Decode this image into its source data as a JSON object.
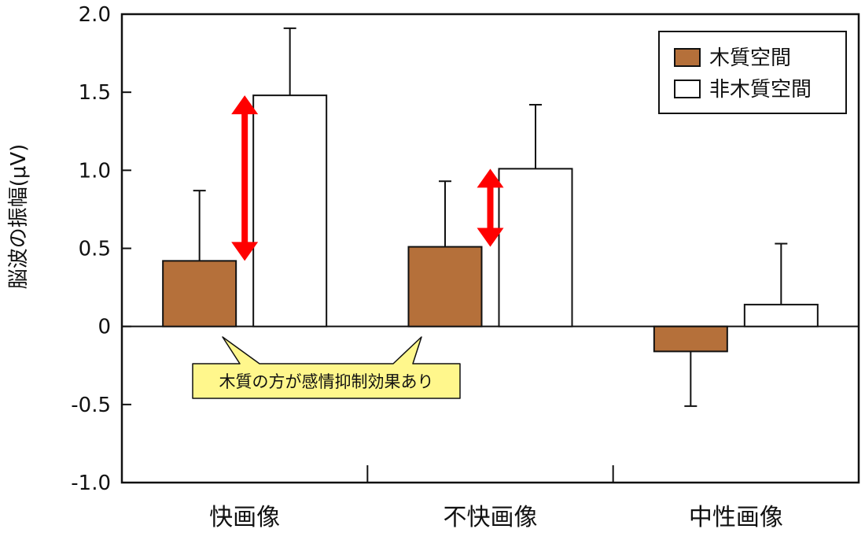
{
  "chart_data": {
    "type": "bar",
    "categories": [
      "快画像",
      "不快画像",
      "中性画像"
    ],
    "series": [
      {
        "name": "木質空間",
        "color": "#b5703a",
        "values": [
          0.42,
          0.51,
          -0.16
        ],
        "errors": [
          0.45,
          0.42,
          0.35
        ]
      },
      {
        "name": "非木質空間",
        "color": "#ffffff",
        "values": [
          1.48,
          1.01,
          0.14
        ],
        "errors": [
          0.43,
          0.41,
          0.39
        ]
      }
    ],
    "title": "",
    "xlabel": "",
    "ylabel": "脳波の振幅(μV)",
    "ylim": [
      -1.0,
      2.0
    ],
    "yticks": [
      2.0,
      1.5,
      1.0,
      0.5,
      0,
      -0.5,
      -1.0
    ],
    "ytick_labels": [
      "2.0",
      "1.5",
      "1.0",
      "0.5",
      "0",
      "-0.5",
      "-1.0"
    ],
    "grid": false,
    "legend_position": "top-right",
    "difference_arrows": [
      {
        "category": "快画像",
        "from": 0.42,
        "to": 1.48,
        "color": "#ff0000"
      },
      {
        "category": "不快画像",
        "from": 0.51,
        "to": 1.01,
        "color": "#ff0000"
      }
    ],
    "annotation": "木質の方が感情抑制効果あり",
    "annotation_color": "#fff78c"
  }
}
